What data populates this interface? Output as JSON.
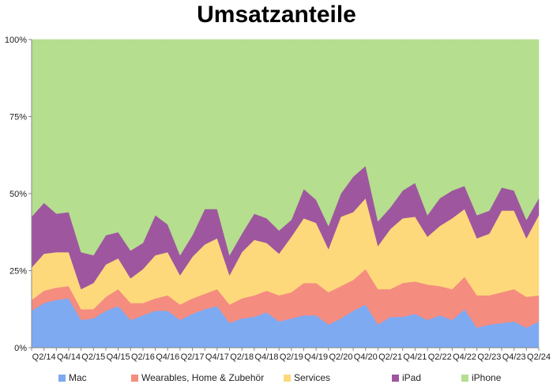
{
  "chart_data": {
    "type": "area",
    "stacked": true,
    "title": "Umsatzanteile",
    "xlabel": "",
    "ylabel": "",
    "ylim": [
      0,
      100
    ],
    "y_ticks": [
      "0%",
      "25%",
      "50%",
      "75%",
      "100%"
    ],
    "y_tick_values": [
      0,
      25,
      50,
      75,
      100
    ],
    "x_tick_labels": [
      "Q2/14",
      "Q4/14",
      "Q2/15",
      "Q4/15",
      "Q2/16",
      "Q4/16",
      "Q2/17",
      "Q4/17",
      "Q2/18",
      "Q4/18",
      "Q2/19",
      "Q4/19",
      "Q2/20",
      "Q4/20",
      "Q2/21",
      "Q4/21",
      "Q2/22",
      "Q4/22",
      "Q2/23",
      "Q4/23",
      "Q2/24"
    ],
    "x": [
      "Q1/14",
      "Q2/14",
      "Q3/14",
      "Q4/14",
      "Q1/15",
      "Q2/15",
      "Q3/15",
      "Q4/15",
      "Q1/16",
      "Q2/16",
      "Q3/16",
      "Q4/16",
      "Q1/17",
      "Q2/17",
      "Q3/17",
      "Q4/17",
      "Q1/18",
      "Q2/18",
      "Q3/18",
      "Q4/18",
      "Q1/19",
      "Q2/19",
      "Q3/19",
      "Q4/19",
      "Q1/20",
      "Q2/20",
      "Q3/20",
      "Q4/20",
      "Q1/21",
      "Q2/21",
      "Q3/21",
      "Q4/21",
      "Q1/22",
      "Q2/22",
      "Q3/22",
      "Q4/22",
      "Q1/23",
      "Q2/23",
      "Q3/23",
      "Q4/23",
      "Q1/24",
      "Q2/24"
    ],
    "legend_position": "bottom",
    "grid": false,
    "series": [
      {
        "name": "Mac",
        "color": "#7eaaf2",
        "values": [
          12,
          14.5,
          15.5,
          16,
          9,
          9.5,
          12,
          13.5,
          9,
          10.5,
          12,
          12,
          9,
          11,
          12.5,
          13.5,
          8,
          9.5,
          10,
          11.5,
          8.5,
          9.5,
          10.5,
          10.5,
          7.5,
          9.5,
          12,
          14,
          7.5,
          10,
          10,
          11,
          9,
          10.5,
          9,
          12.5,
          6.5,
          7.5,
          8,
          8.5,
          6.5,
          8.5
        ]
      },
      {
        "name": "Wearables, Home & Zubehör",
        "color": "#f48c80",
        "values": [
          3.5,
          4,
          4,
          4,
          3.5,
          3,
          4.5,
          5.5,
          5.5,
          4,
          4,
          5,
          5,
          5,
          5,
          5.5,
          6,
          6.5,
          7,
          7,
          8.5,
          8.5,
          10.5,
          10.5,
          10.5,
          10.5,
          10,
          11.5,
          11.5,
          9,
          11,
          10.5,
          11.5,
          9.5,
          10,
          10.5,
          10.5,
          9.5,
          10,
          10.5,
          10,
          8.5
        ]
      },
      {
        "name": "Services",
        "color": "#fed97b",
        "values": [
          10.5,
          12,
          11.5,
          11,
          6.5,
          8.5,
          10.5,
          10,
          8,
          11,
          14,
          14,
          9.5,
          13.5,
          16,
          16.5,
          9.5,
          15,
          18,
          15.5,
          13.5,
          18,
          21,
          19.5,
          14,
          22.5,
          22,
          23,
          14,
          19.5,
          21,
          21,
          15.5,
          19.5,
          23,
          22,
          18.5,
          20,
          26.5,
          25.5,
          19,
          26
        ]
      },
      {
        "name": "iPad",
        "color": "#9e579e",
        "values": [
          16.5,
          16.5,
          12.5,
          13,
          12,
          9,
          9.5,
          8.5,
          9,
          8.5,
          13,
          9,
          6.5,
          7,
          11.5,
          9.5,
          6.5,
          6,
          8.5,
          8,
          7.5,
          5.5,
          9.5,
          7.5,
          7.5,
          7.5,
          11.5,
          10.5,
          8,
          7,
          9,
          11,
          7,
          9,
          9,
          7.5,
          7.5,
          7.5,
          7.5,
          6.5,
          6,
          5.5
        ]
      },
      {
        "name": "iPhone",
        "color": "#b5de8f",
        "values": [
          57.5,
          53,
          56.5,
          56,
          69,
          70,
          63.5,
          62.5,
          68.5,
          66,
          57,
          60,
          70,
          63.5,
          55,
          55,
          70,
          63,
          56.5,
          58,
          62,
          58.5,
          48.5,
          52,
          60.5,
          50,
          44.5,
          41,
          59,
          54.5,
          49,
          46.5,
          57,
          51.5,
          49,
          47.5,
          57,
          55.5,
          48,
          49,
          58.5,
          51.5
        ]
      }
    ]
  }
}
